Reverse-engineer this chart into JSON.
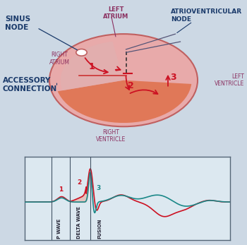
{
  "bg_color": "#ccd8e4",
  "heart_circle_color": "#e8aaaa",
  "heart_circle_edge": "#c06060",
  "ventricle_fill": "#e07858",
  "right_atrium_fill": "#d4aaaa",
  "arrow_color": "#cc1122",
  "label_color_purple": "#8B3060",
  "title_color": "#1a3a6a",
  "sinus_node_label": "SINUS\nNODE",
  "av_node_label": "ATRIOVENTRICULAR\nNODE",
  "left_atrium_label": "LEFT\nATRIUM",
  "right_atrium_label": "RIGHT\nATRIUM",
  "accessory_label": "ACCESSORY\nCONNECTION",
  "left_ventricle_label": "LEFT\nVENTRICLE",
  "right_ventricle_label": "RIGHT\nVENTRICLE",
  "ecg_bg": "#dce8f0",
  "ecg_red": "#cc1122",
  "ecg_teal": "#1a8888",
  "p_wave_label": "P WAVE",
  "delta_wave_label": "DELTA WAVE",
  "fusion_label": "FUSION",
  "num_color": "#cc1122"
}
